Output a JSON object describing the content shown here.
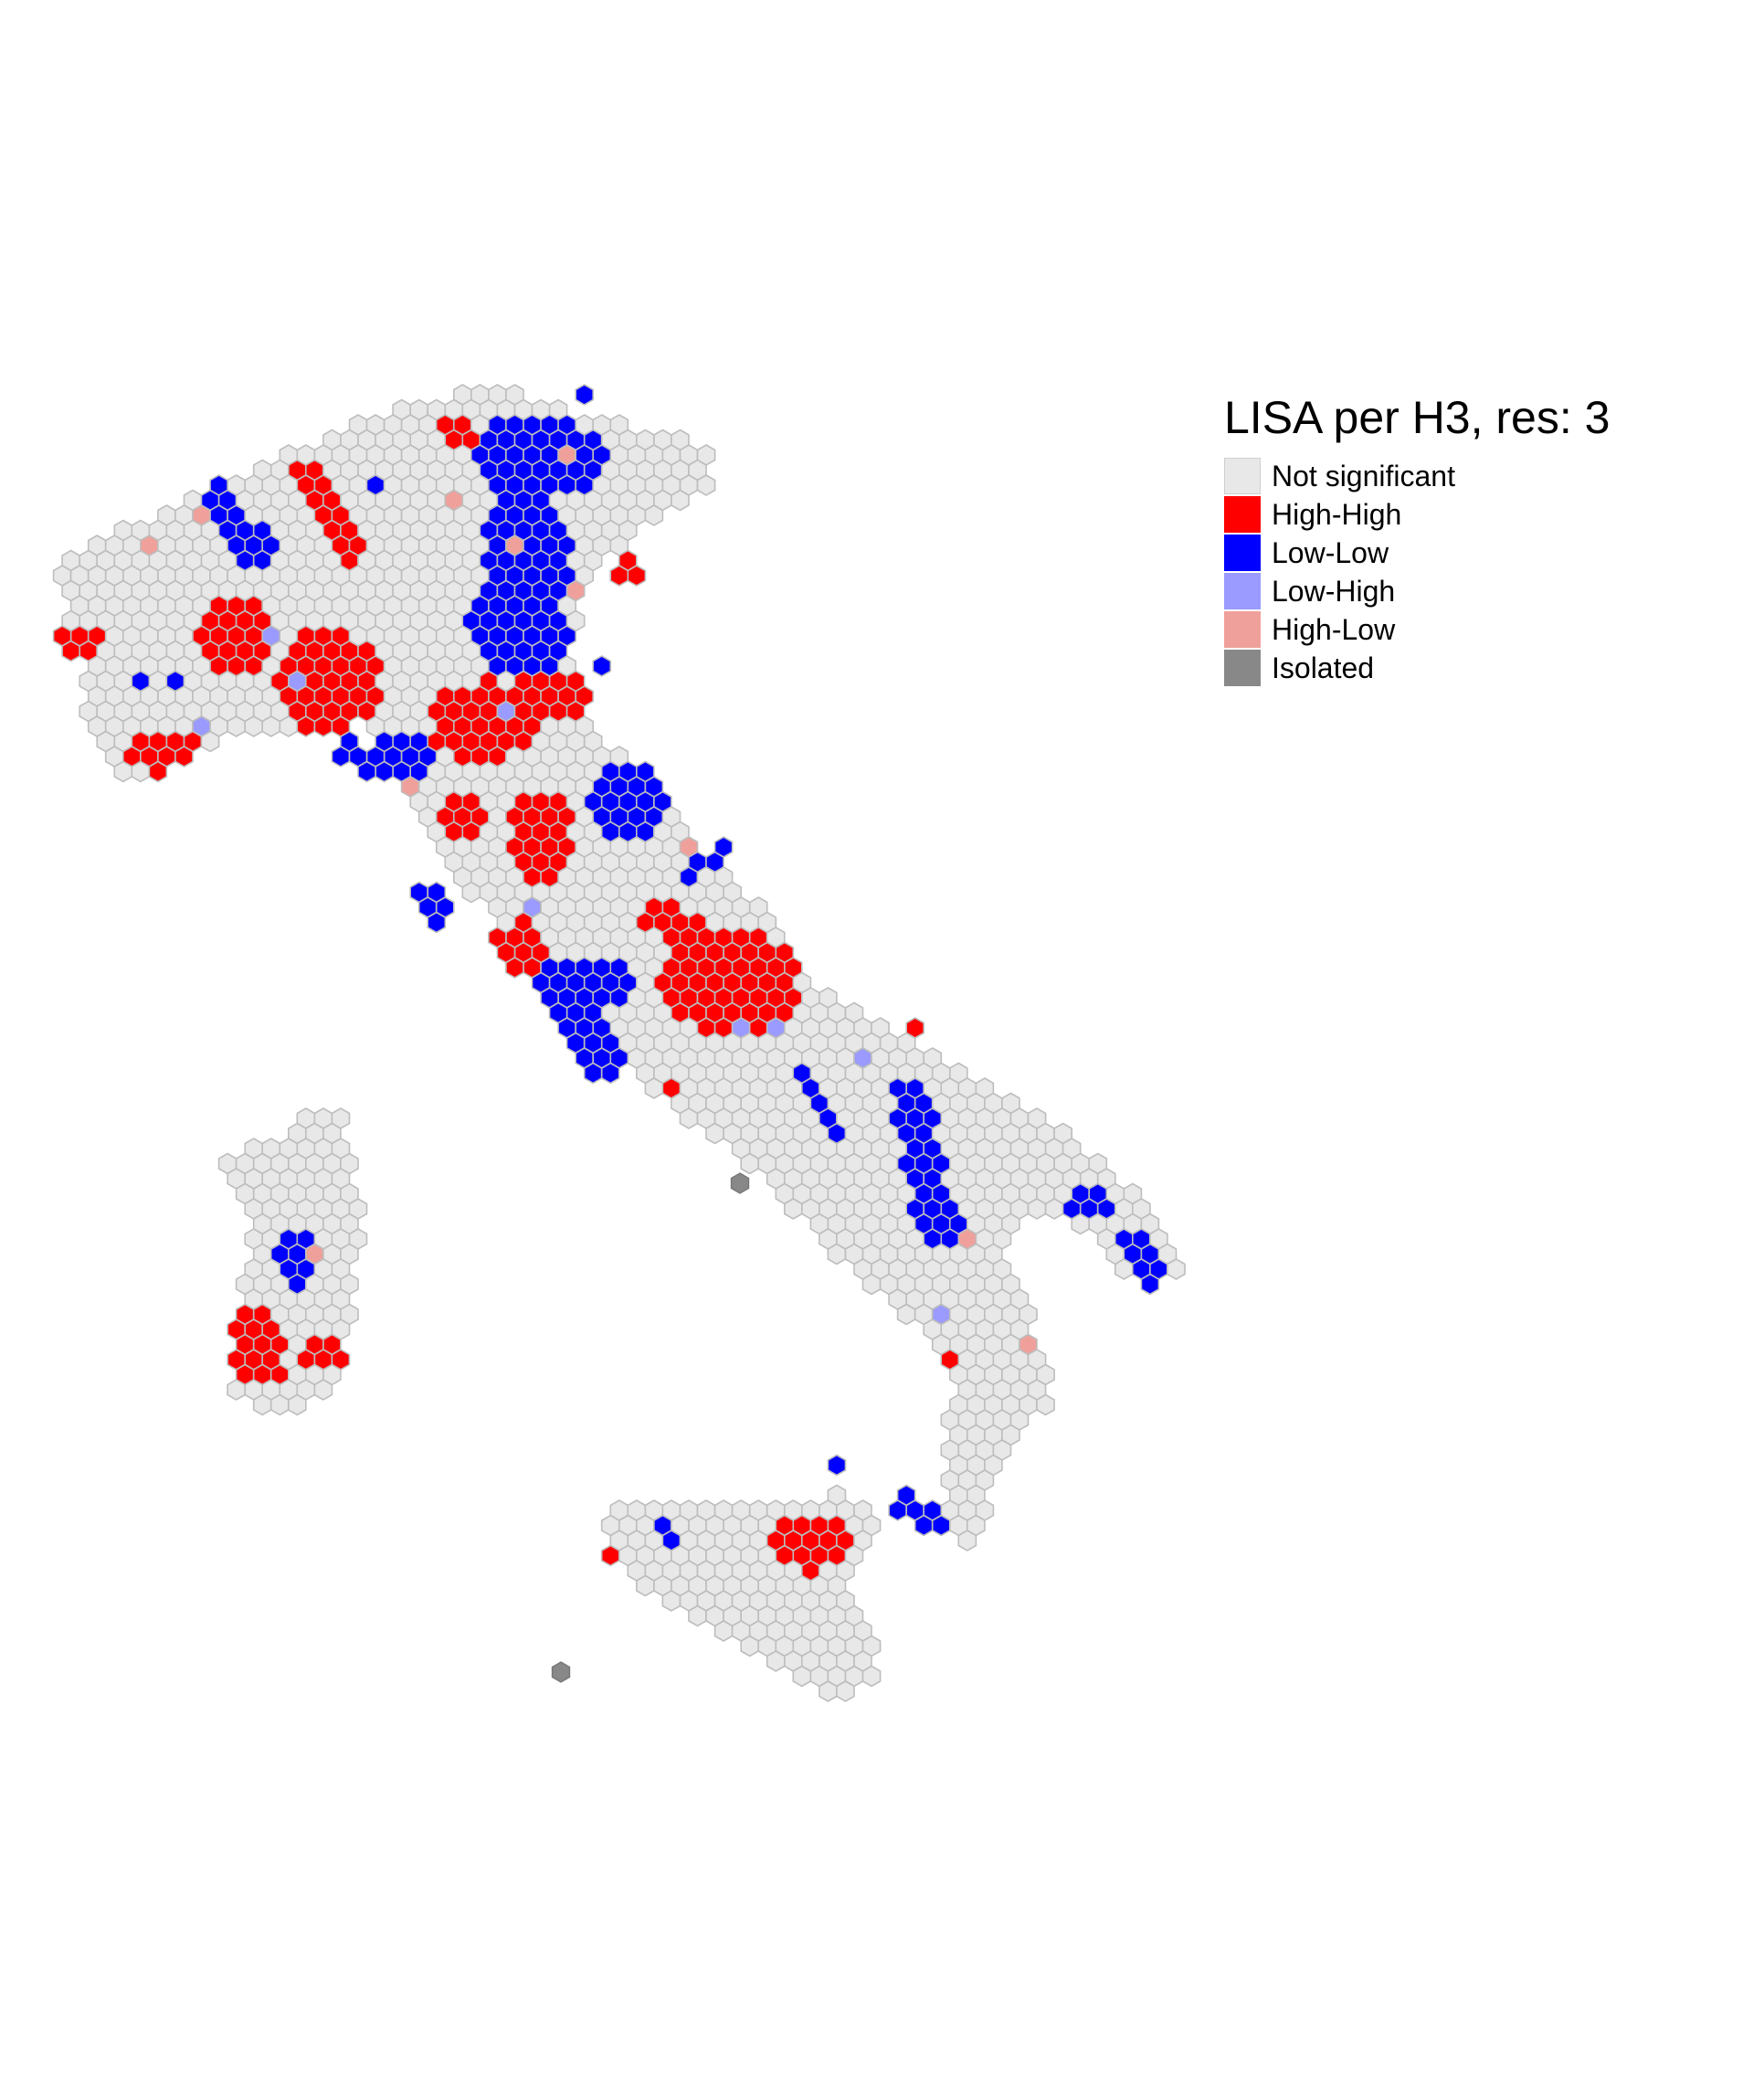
{
  "legend": {
    "title": "LISA per H3, res:  3",
    "items": [
      {
        "key": "ns",
        "label": "Not significant",
        "color": "#e8e8e8"
      },
      {
        "key": "hh",
        "label": "High-High",
        "color": "#ff0000"
      },
      {
        "key": "ll",
        "label": "Low-Low",
        "color": "#0000ff"
      },
      {
        "key": "lh",
        "label": "Low-High",
        "color": "#9a9aff"
      },
      {
        "key": "hl",
        "label": "High-Low",
        "color": "#f0a09a"
      },
      {
        "key": "iso",
        "label": "Isolated",
        "color": "#888888"
      }
    ]
  }
}
